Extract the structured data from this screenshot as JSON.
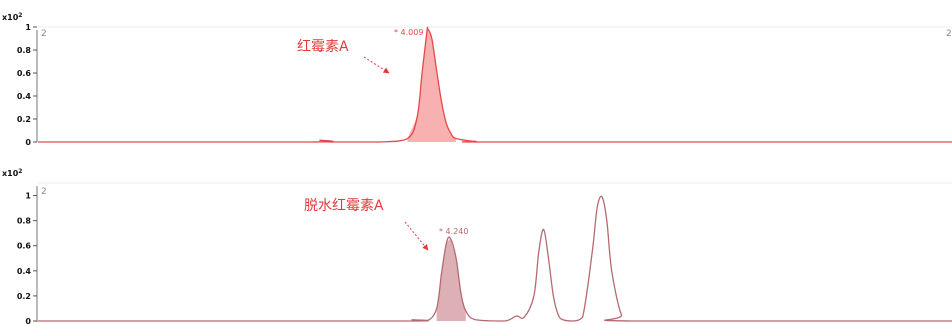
{
  "chart_data": [
    {
      "type": "line",
      "scale_label": "x10",
      "scale_exp": "2",
      "panel_index": "2",
      "panel_index_right": "2",
      "y_ticks": [
        "0",
        "0.2",
        "0.4",
        "0.6",
        "0.8",
        "1"
      ],
      "ylim": [
        0,
        1.0
      ],
      "xlim": [
        0,
        9.4
      ],
      "color": "#e5484a",
      "fill_color": "#f7a8a8",
      "peak_label": "* 4.009",
      "annotation": "红霉素A",
      "series": [
        {
          "values": {
            "x": [
              0.0,
              2.8,
              2.9,
              3.0,
              3.5,
              3.8,
              3.9,
              3.95,
              4.0,
              4.01,
              4.05,
              4.1,
              4.15,
              4.2,
              4.25,
              4.3,
              4.5,
              4.8,
              9.4
            ],
            "y": [
              0.0,
              0.0,
              0.015,
              0.0,
              0.0,
              0.03,
              0.22,
              0.6,
              0.96,
              0.98,
              0.9,
              0.62,
              0.35,
              0.16,
              0.07,
              0.03,
              0.005,
              0.0,
              0.0
            ]
          }
        }
      ]
    },
    {
      "type": "line",
      "scale_label": "x10",
      "scale_exp": "2",
      "panel_index": "2",
      "y_ticks": [
        "0",
        "0.2",
        "0.4",
        "0.6",
        "0.8",
        "1"
      ],
      "ylim": [
        0,
        1.1
      ],
      "xlim": [
        0,
        9.4
      ],
      "color": "#b56a70",
      "fill_color": "#d9a7ae",
      "peak_label": "* 4.240",
      "annotation": "脱水红霉素A",
      "series": [
        {
          "values": {
            "x": [
              0.0,
              3.7,
              3.85,
              4.0,
              4.1,
              4.15,
              4.2,
              4.24,
              4.3,
              4.35,
              4.4,
              4.5,
              4.8,
              4.92,
              5.0,
              5.1,
              5.15,
              5.2,
              5.25,
              5.3,
              5.35,
              5.4,
              5.5,
              5.6,
              5.7,
              5.75,
              5.8,
              5.85,
              5.9,
              6.0,
              6.1,
              9.4
            ],
            "y": [
              0.0,
              0.0,
              0.01,
              0.0,
              0.1,
              0.38,
              0.62,
              0.66,
              0.5,
              0.22,
              0.08,
              0.01,
              0.0,
              0.04,
              0.03,
              0.2,
              0.55,
              0.73,
              0.5,
              0.2,
              0.05,
              0.01,
              0.0,
              0.03,
              0.55,
              0.9,
              0.99,
              0.8,
              0.4,
              0.05,
              0.0,
              0.0
            ]
          }
        }
      ]
    }
  ]
}
